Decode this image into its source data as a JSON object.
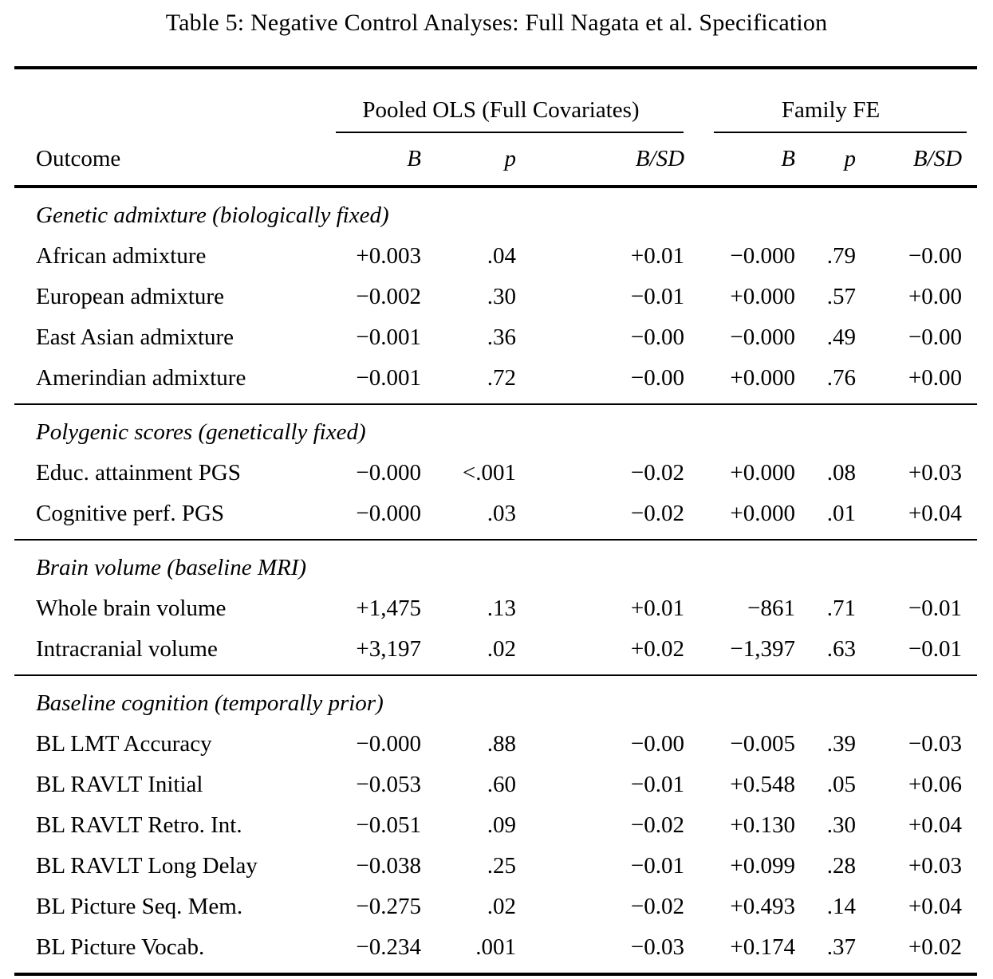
{
  "caption": "Table 5: Negative Control Analyses: Full Nagata et al. Specification",
  "colors": {
    "text": "#000000",
    "background": "#ffffff",
    "rule": "#000000"
  },
  "table": {
    "group_headers": [
      {
        "label": "Pooled OLS (Full Covariates)",
        "span": 3
      },
      {
        "label": "Family FE",
        "span": 3
      }
    ],
    "column_headers": [
      "Outcome",
      "B",
      "p",
      "B/SD",
      "B",
      "p",
      "B/SD"
    ],
    "sections": [
      {
        "header": "Genetic admixture (biologically fixed)",
        "rows": [
          {
            "outcome": "African admixture",
            "values": [
              "+0.003",
              ".04",
              "+0.01",
              "−0.000",
              ".79",
              "−0.00"
            ]
          },
          {
            "outcome": "European admixture",
            "values": [
              "−0.002",
              ".30",
              "−0.01",
              "+0.000",
              ".57",
              "+0.00"
            ]
          },
          {
            "outcome": "East Asian admixture",
            "values": [
              "−0.001",
              ".36",
              "−0.00",
              "−0.000",
              ".49",
              "−0.00"
            ]
          },
          {
            "outcome": "Amerindian admixture",
            "values": [
              "−0.001",
              ".72",
              "−0.00",
              "+0.000",
              ".76",
              "+0.00"
            ]
          }
        ]
      },
      {
        "header": "Polygenic scores (genetically fixed)",
        "rows": [
          {
            "outcome": "Educ. attainment PGS",
            "values": [
              "−0.000",
              "<.001",
              "−0.02",
              "+0.000",
              ".08",
              "+0.03"
            ]
          },
          {
            "outcome": "Cognitive perf. PGS",
            "values": [
              "−0.000",
              ".03",
              "−0.02",
              "+0.000",
              ".01",
              "+0.04"
            ]
          }
        ]
      },
      {
        "header": "Brain volume (baseline MRI)",
        "rows": [
          {
            "outcome": "Whole brain volume",
            "values": [
              "+1,475",
              ".13",
              "+0.01",
              "−861",
              ".71",
              "−0.01"
            ]
          },
          {
            "outcome": "Intracranial volume",
            "values": [
              "+3,197",
              ".02",
              "+0.02",
              "−1,397",
              ".63",
              "−0.01"
            ]
          }
        ]
      },
      {
        "header": "Baseline cognition (temporally prior)",
        "rows": [
          {
            "outcome": "BL LMT Accuracy",
            "values": [
              "−0.000",
              ".88",
              "−0.00",
              "−0.005",
              ".39",
              "−0.03"
            ]
          },
          {
            "outcome": "BL RAVLT Initial",
            "values": [
              "−0.053",
              ".60",
              "−0.01",
              "+0.548",
              ".05",
              "+0.06"
            ]
          },
          {
            "outcome": "BL RAVLT Retro. Int.",
            "values": [
              "−0.051",
              ".09",
              "−0.02",
              "+0.130",
              ".30",
              "+0.04"
            ]
          },
          {
            "outcome": "BL RAVLT Long Delay",
            "values": [
              "−0.038",
              ".25",
              "−0.01",
              "+0.099",
              ".28",
              "+0.03"
            ]
          },
          {
            "outcome": "BL Picture Seq. Mem.",
            "values": [
              "−0.275",
              ".02",
              "−0.02",
              "+0.493",
              ".14",
              "+0.04"
            ]
          },
          {
            "outcome": "BL Picture Vocab.",
            "values": [
              "−0.234",
              ".001",
              "−0.03",
              "+0.174",
              ".37",
              "+0.02"
            ]
          }
        ]
      }
    ]
  }
}
